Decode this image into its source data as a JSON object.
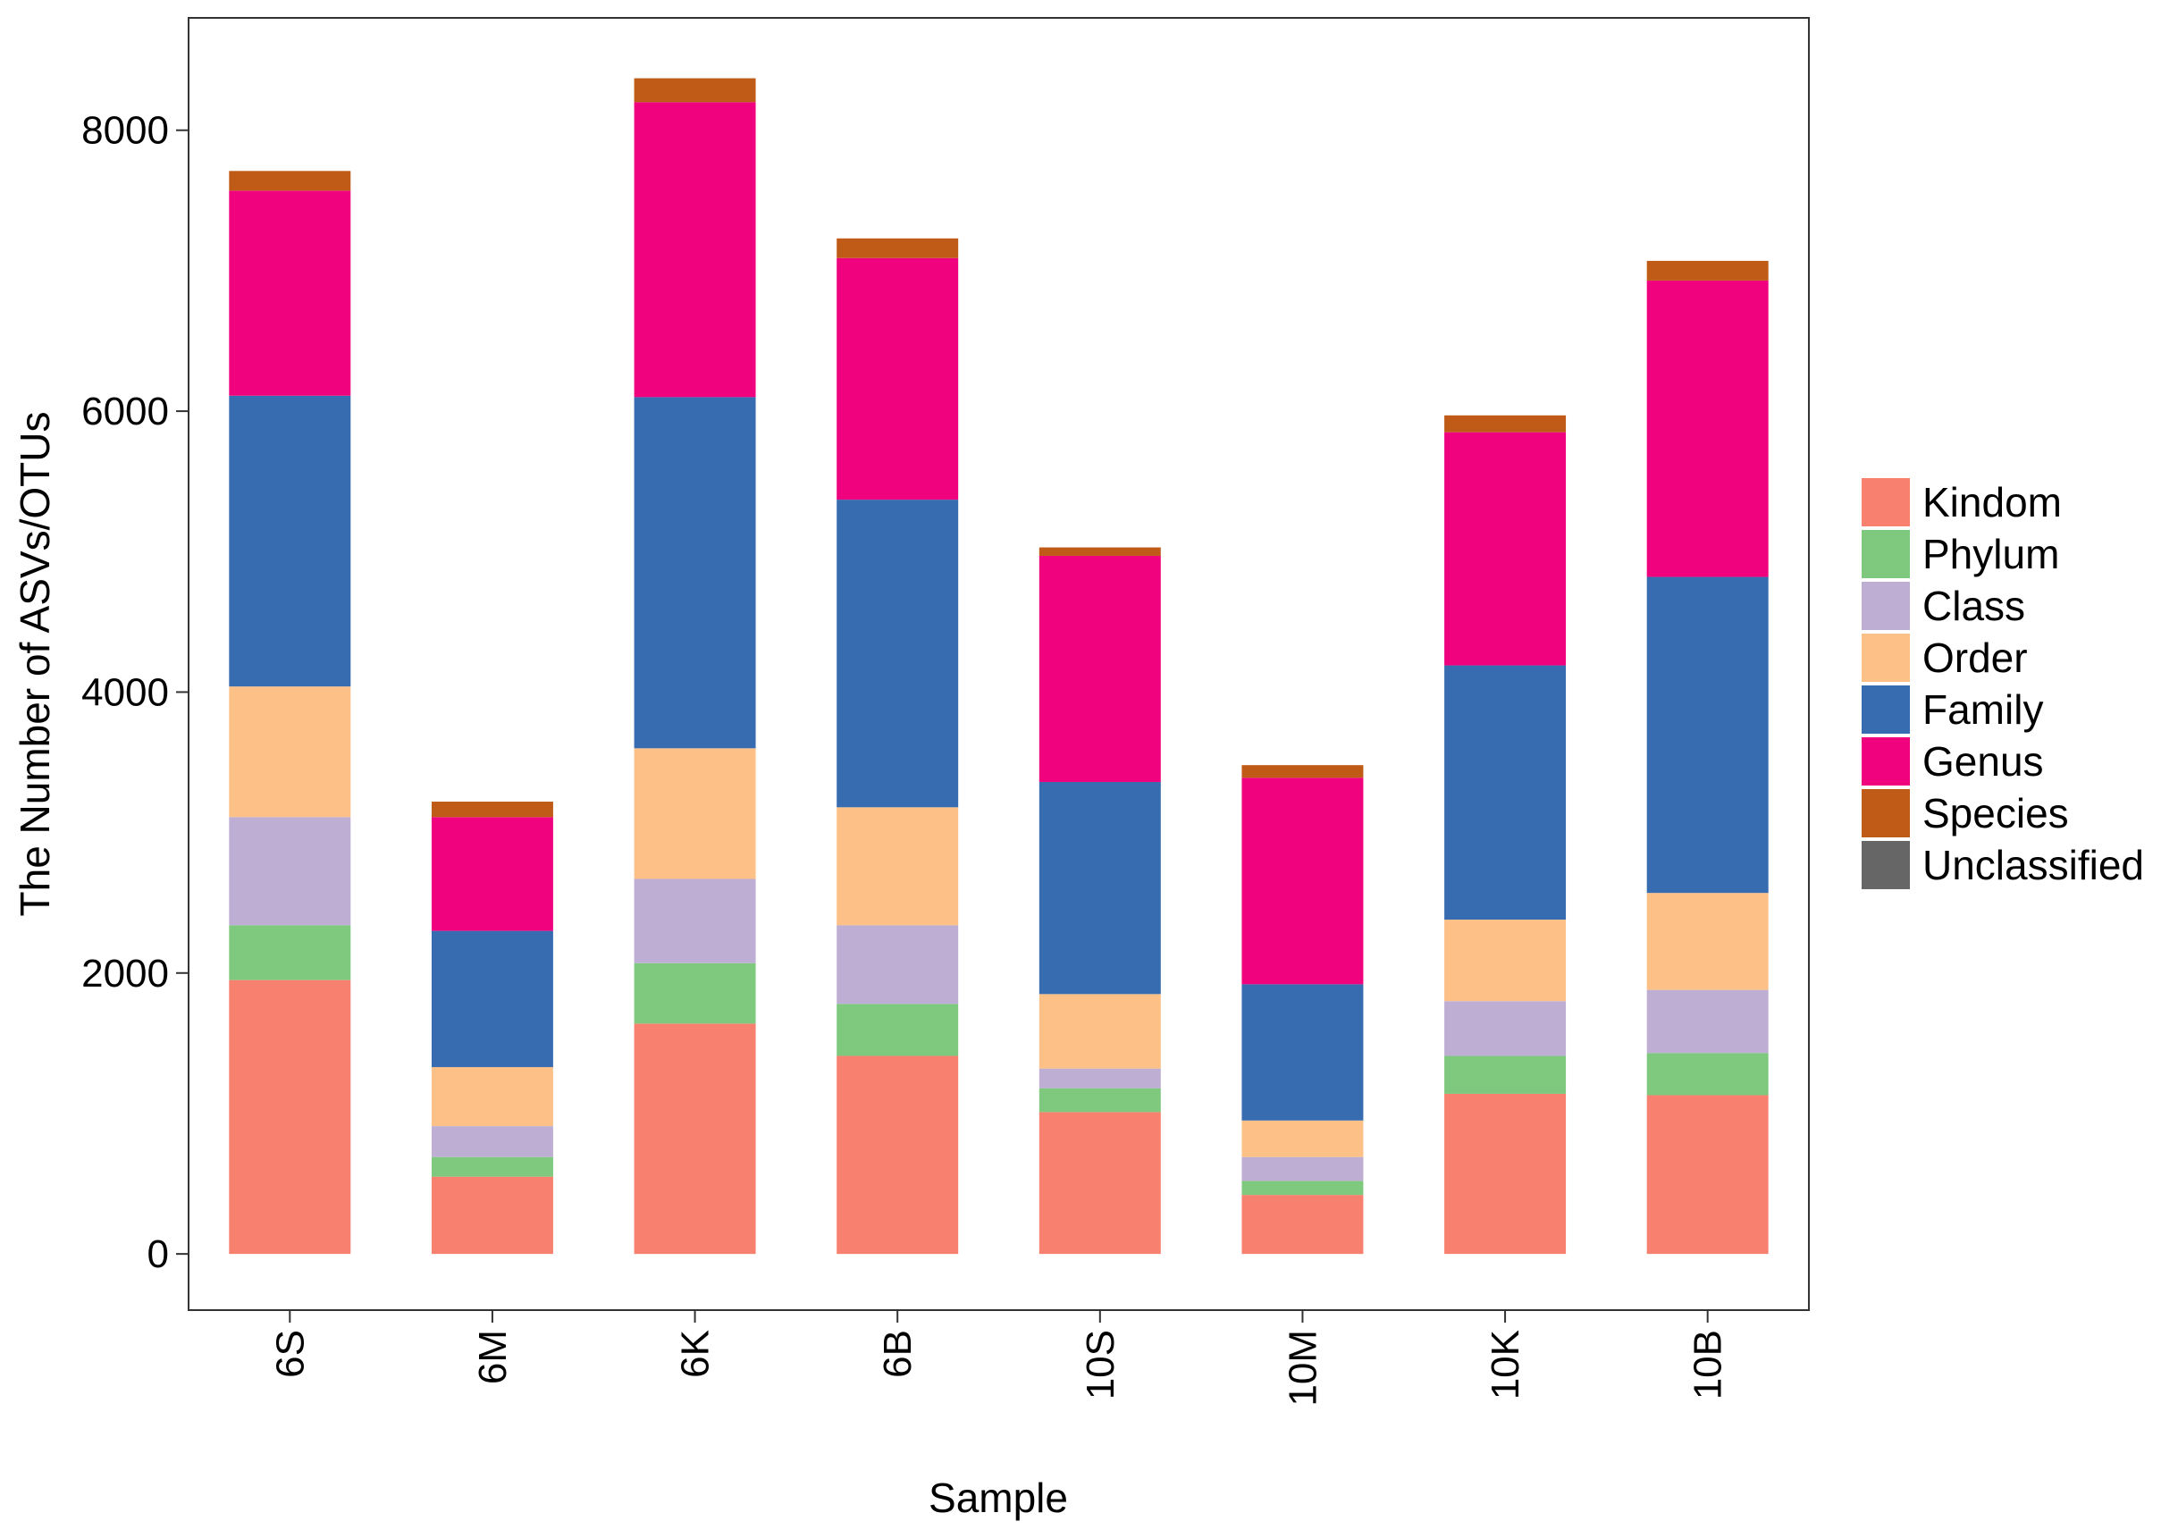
{
  "chart_data": {
    "type": "bar",
    "stacked": true,
    "title": "",
    "xlabel": "Sample",
    "ylabel": "The Number of ASVs/OTUs",
    "ylim": [
      -400,
      8800
    ],
    "yticks": [
      0,
      2000,
      4000,
      6000,
      8000
    ],
    "grid": false,
    "legend_position": "right",
    "categories": [
      "6S",
      "6M",
      "6K",
      "6B",
      "10S",
      "10M",
      "10K",
      "10B"
    ],
    "series": [
      {
        "name": "Kindom",
        "color": "#F8806F",
        "values": [
          1950,
          550,
          1640,
          1410,
          1010,
          420,
          1140,
          1130
        ]
      },
      {
        "name": "Phylum",
        "color": "#7FC97F",
        "values": [
          390,
          140,
          430,
          370,
          170,
          100,
          270,
          300
        ]
      },
      {
        "name": "Class",
        "color": "#BEAED4",
        "values": [
          770,
          220,
          600,
          560,
          140,
          170,
          390,
          450
        ]
      },
      {
        "name": "Order",
        "color": "#FDC086",
        "values": [
          930,
          420,
          930,
          840,
          530,
          260,
          580,
          690
        ]
      },
      {
        "name": "Family",
        "color": "#386CB0",
        "values": [
          2070,
          970,
          2500,
          2190,
          1510,
          970,
          1810,
          2250
        ]
      },
      {
        "name": "Genus",
        "color": "#F0027F",
        "values": [
          1460,
          810,
          2100,
          1720,
          1610,
          1470,
          1660,
          2110
        ]
      },
      {
        "name": "Species",
        "color": "#BF5B17",
        "values": [
          140,
          110,
          170,
          140,
          60,
          90,
          120,
          140
        ]
      },
      {
        "name": "Unclassified",
        "color": "#666666",
        "values": [
          0,
          0,
          0,
          0,
          0,
          0,
          0,
          0
        ]
      }
    ]
  }
}
